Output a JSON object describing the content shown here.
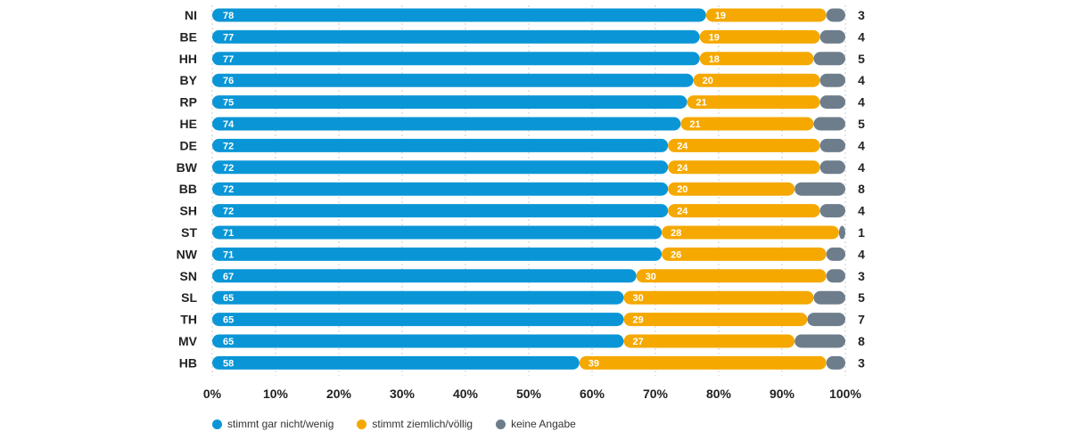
{
  "chart_data": {
    "type": "bar",
    "orientation": "horizontal",
    "stacked": true,
    "categories": [
      "NI",
      "BE",
      "HH",
      "BY",
      "RP",
      "HE",
      "DE",
      "BW",
      "BB",
      "SH",
      "ST",
      "NW",
      "SN",
      "SL",
      "TH",
      "MV",
      "HB"
    ],
    "series": [
      {
        "name": "stimmt gar nicht/wenig",
        "color": "#0a96d6",
        "values": [
          78,
          77,
          77,
          76,
          75,
          74,
          72,
          72,
          72,
          72,
          71,
          71,
          67,
          65,
          65,
          65,
          58
        ]
      },
      {
        "name": "stimmt ziemlich/völlig",
        "color": "#f5a800",
        "values": [
          19,
          19,
          18,
          20,
          21,
          21,
          24,
          24,
          20,
          24,
          28,
          26,
          30,
          30,
          29,
          27,
          39
        ]
      },
      {
        "name": "keine Angabe",
        "color": "#6d7d8c",
        "values": [
          3,
          4,
          5,
          4,
          4,
          5,
          4,
          4,
          8,
          4,
          1,
          4,
          3,
          5,
          7,
          8,
          3
        ]
      }
    ],
    "right_labels": [
      "3",
      "4",
      "5",
      "4",
      "4",
      "5",
      "4",
      "4",
      "8",
      "4",
      "1",
      "4",
      "3",
      "5",
      "7",
      "8",
      "3"
    ],
    "xlim": [
      0,
      100
    ],
    "x_ticks": [
      "0%",
      "10%",
      "20%",
      "30%",
      "40%",
      "50%",
      "60%",
      "70%",
      "80%",
      "90%",
      "100%"
    ],
    "grid": true,
    "legend_position": "bottom-left",
    "title": "",
    "xlabel": "",
    "ylabel": ""
  }
}
